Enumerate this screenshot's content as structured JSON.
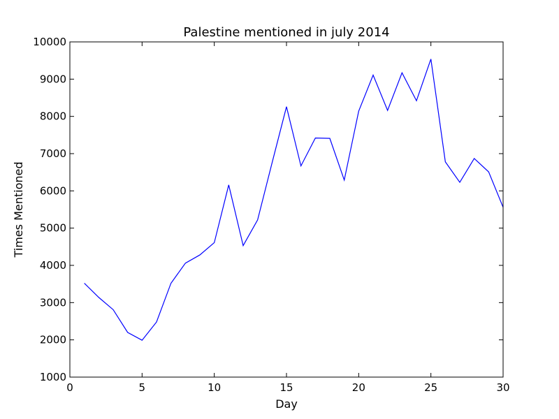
{
  "chart_data": {
    "type": "line",
    "title": "Palestine mentioned in july 2014",
    "xlabel": "Day",
    "ylabel": "Times Mentioned",
    "xlim": [
      0,
      30
    ],
    "ylim": [
      1000,
      10000
    ],
    "xticks": [
      0,
      5,
      10,
      15,
      20,
      25,
      30
    ],
    "yticks": [
      1000,
      2000,
      3000,
      4000,
      5000,
      6000,
      7000,
      8000,
      9000,
      10000
    ],
    "grid": false,
    "series": [
      {
        "color": "#0000ff",
        "x": [
          1,
          2,
          3,
          4,
          5,
          6,
          7,
          8,
          9,
          10,
          11,
          12,
          13,
          14,
          15,
          16,
          17,
          18,
          19,
          20,
          21,
          22,
          23,
          24,
          25,
          26,
          27,
          28,
          29,
          30
        ],
        "y": [
          3520,
          3140,
          2810,
          2200,
          1990,
          2480,
          3520,
          4060,
          4280,
          4610,
          6160,
          4530,
          5220,
          6750,
          8260,
          6670,
          7420,
          7410,
          6290,
          8140,
          9110,
          8160,
          9170,
          8420,
          9540,
          6780,
          6230,
          6870,
          6510,
          5560
        ]
      }
    ]
  }
}
